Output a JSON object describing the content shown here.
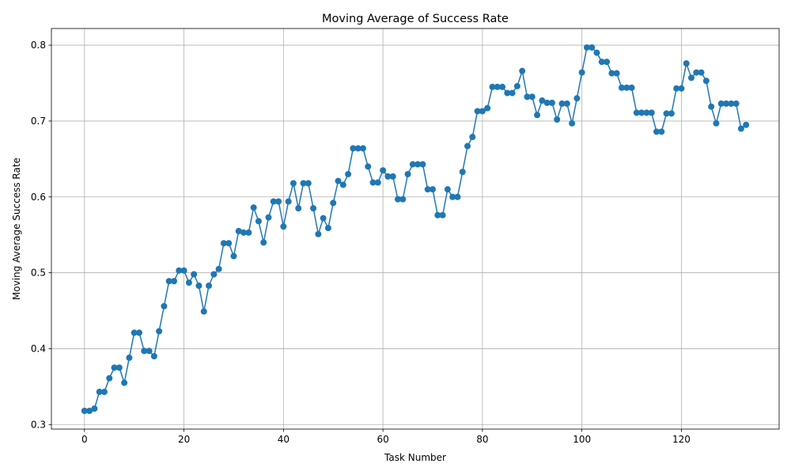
{
  "chart_data": {
    "type": "line",
    "title": "Moving Average of Success Rate",
    "xlabel": "Task Number",
    "ylabel": "Moving Average Success Rate",
    "xlim": [
      -6.65,
      139.65
    ],
    "ylim": [
      0.294,
      0.822
    ],
    "xticks": [
      0,
      20,
      40,
      60,
      80,
      100,
      120
    ],
    "yticks": [
      0.3,
      0.4,
      0.5,
      0.6,
      0.7,
      0.8
    ],
    "ytick_labels": [
      "0.3",
      "0.4",
      "0.5",
      "0.6",
      "0.7",
      "0.8"
    ],
    "grid": true,
    "series": [
      {
        "color": "#1f77b4",
        "marker": "circle",
        "x": [
          0,
          1,
          2,
          3,
          4,
          5,
          6,
          7,
          8,
          9,
          10,
          11,
          12,
          13,
          14,
          15,
          16,
          17,
          18,
          19,
          20,
          21,
          22,
          23,
          24,
          25,
          26,
          27,
          28,
          29,
          30,
          31,
          32,
          33,
          34,
          35,
          36,
          37,
          38,
          39,
          40,
          41,
          42,
          43,
          44,
          45,
          46,
          47,
          48,
          49,
          50,
          51,
          52,
          53,
          54,
          55,
          56,
          57,
          58,
          59,
          60,
          61,
          62,
          63,
          64,
          65,
          66,
          67,
          68,
          69,
          70,
          71,
          72,
          73,
          74,
          75,
          76,
          77,
          78,
          79,
          80,
          81,
          82,
          83,
          84,
          85,
          86,
          87,
          88,
          89,
          90,
          91,
          92,
          93,
          94,
          95,
          96,
          97,
          98,
          99,
          100,
          101,
          102,
          103,
          104,
          105,
          106,
          107,
          108,
          109,
          110,
          111,
          112,
          113,
          114,
          115,
          116,
          117,
          118,
          119,
          120,
          121,
          122,
          123,
          124,
          125,
          126,
          127,
          128,
          129,
          130,
          131,
          132,
          133
        ],
        "y": [
          0.318,
          0.318,
          0.321,
          0.343,
          0.343,
          0.361,
          0.375,
          0.375,
          0.355,
          0.388,
          0.421,
          0.421,
          0.397,
          0.397,
          0.39,
          0.423,
          0.456,
          0.489,
          0.489,
          0.503,
          0.503,
          0.487,
          0.498,
          0.483,
          0.449,
          0.483,
          0.498,
          0.505,
          0.539,
          0.539,
          0.522,
          0.555,
          0.553,
          0.553,
          0.586,
          0.568,
          0.54,
          0.573,
          0.594,
          0.594,
          0.561,
          0.594,
          0.618,
          0.585,
          0.618,
          0.618,
          0.585,
          0.551,
          0.572,
          0.559,
          0.592,
          0.621,
          0.616,
          0.63,
          0.664,
          0.664,
          0.664,
          0.64,
          0.619,
          0.619,
          0.635,
          0.627,
          0.627,
          0.597,
          0.597,
          0.63,
          0.643,
          0.643,
          0.643,
          0.61,
          0.61,
          0.576,
          0.576,
          0.61,
          0.6,
          0.6,
          0.633,
          0.667,
          0.679,
          0.713,
          0.713,
          0.717,
          0.745,
          0.745,
          0.745,
          0.737,
          0.737,
          0.746,
          0.766,
          0.732,
          0.732,
          0.708,
          0.727,
          0.724,
          0.724,
          0.702,
          0.723,
          0.723,
          0.697,
          0.73,
          0.764,
          0.797,
          0.797,
          0.79,
          0.778,
          0.778,
          0.763,
          0.763,
          0.744,
          0.744,
          0.744,
          0.711,
          0.711,
          0.711,
          0.711,
          0.686,
          0.686,
          0.71,
          0.71,
          0.743,
          0.743,
          0.776,
          0.757,
          0.764,
          0.764,
          0.753,
          0.719,
          0.697,
          0.723,
          0.723,
          0.723,
          0.723,
          0.69,
          0.695
        ]
      }
    ]
  }
}
